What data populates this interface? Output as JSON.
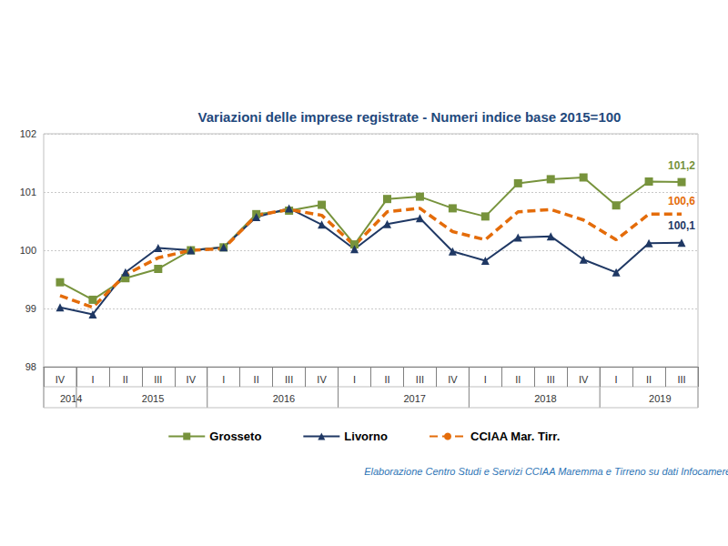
{
  "chart_data": {
    "type": "line",
    "title": "Variazioni delle imprese registrate - Numeri indice base 2015=100",
    "source": "Elaborazione Centro Studi e Servizi CCIAA Maremma e Tirreno su dati Infocamere",
    "categories": [
      "IV",
      "I",
      "II",
      "III",
      "IV",
      "I",
      "II",
      "III",
      "IV",
      "I",
      "II",
      "III",
      "IV",
      "I",
      "II",
      "III",
      "IV",
      "I",
      "II",
      "III"
    ],
    "category_groups": [
      "2014",
      "2015",
      "2015",
      "2015",
      "2015",
      "2016",
      "2016",
      "2016",
      "2016",
      "2017",
      "2017",
      "2017",
      "2017",
      "2018",
      "2018",
      "2018",
      "2018",
      "2019",
      "2019",
      "2019"
    ],
    "series": [
      {
        "name": "Grosseto",
        "color": "#77933c",
        "marker": "square",
        "line_style": "solid",
        "values": [
          99.45,
          99.15,
          99.52,
          99.68,
          100.0,
          100.05,
          100.62,
          100.68,
          100.78,
          100.1,
          100.88,
          100.92,
          100.72,
          100.58,
          101.15,
          101.22,
          101.25,
          100.77,
          101.18,
          101.17
        ],
        "value_labels": [
          null,
          null,
          null,
          null,
          null,
          null,
          null,
          null,
          null,
          null,
          null,
          null,
          null,
          null,
          null,
          null,
          null,
          null,
          null,
          "101,2"
        ]
      },
      {
        "name": "Livorno",
        "color": "#1f3864",
        "marker": "triangle",
        "line_style": "solid",
        "values": [
          99.02,
          98.9,
          99.62,
          100.04,
          100.0,
          100.05,
          100.57,
          100.72,
          100.44,
          100.02,
          100.45,
          100.55,
          99.98,
          99.82,
          100.22,
          100.24,
          99.84,
          99.62,
          100.12,
          100.13
        ],
        "value_labels": [
          null,
          null,
          null,
          null,
          null,
          null,
          null,
          null,
          null,
          null,
          null,
          null,
          null,
          null,
          null,
          null,
          null,
          null,
          null,
          "100,1"
        ]
      },
      {
        "name": "CCIAA Mar. Tirr.",
        "color": "#e46c0a",
        "marker": "none",
        "line_style": "dashed",
        "values": [
          99.22,
          99.02,
          99.58,
          99.87,
          100.0,
          100.03,
          100.6,
          100.7,
          100.6,
          100.08,
          100.66,
          100.72,
          100.32,
          100.18,
          100.66,
          100.7,
          100.52,
          100.18,
          100.62,
          100.62
        ],
        "value_labels": [
          null,
          null,
          null,
          null,
          null,
          null,
          null,
          null,
          null,
          null,
          null,
          null,
          null,
          null,
          null,
          null,
          null,
          null,
          null,
          "100,6"
        ]
      }
    ],
    "ylim": [
      98,
      102
    ],
    "yticks": [
      98,
      99,
      100,
      101,
      102
    ],
    "grid": true,
    "legend": "bottom"
  }
}
